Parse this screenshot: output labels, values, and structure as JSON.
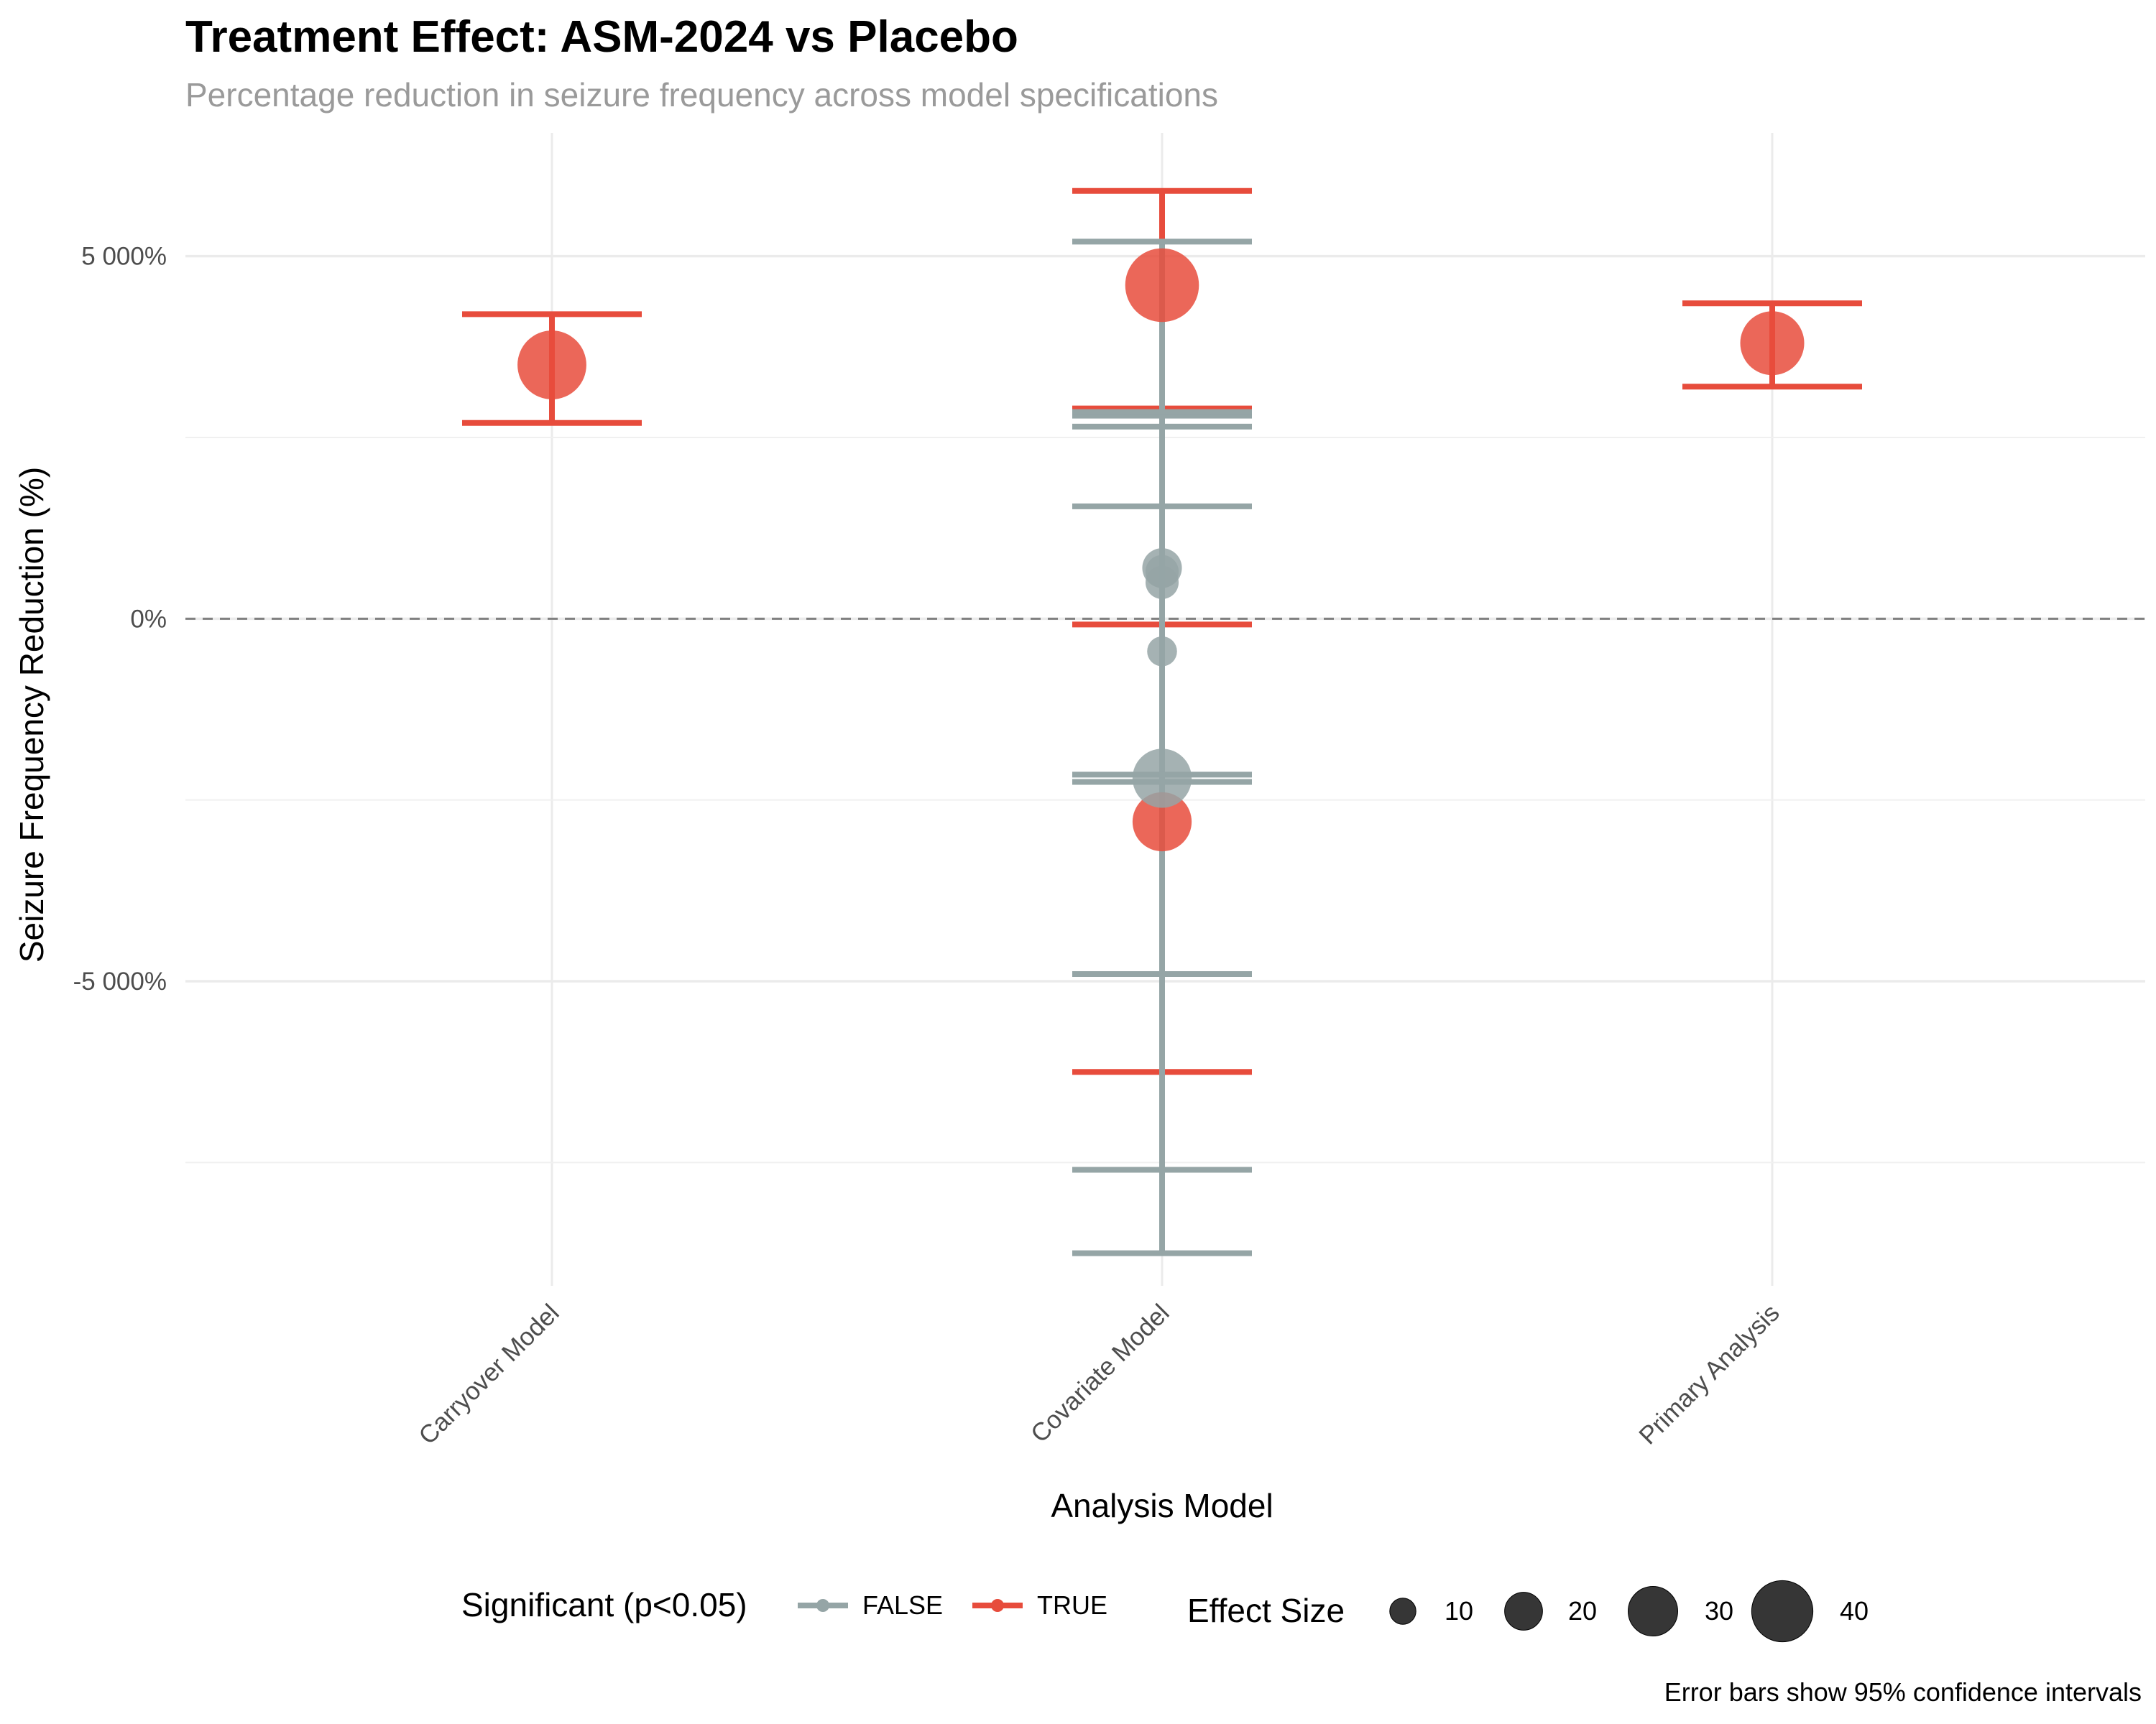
{
  "chart_data": {
    "type": "scatter",
    "title": "Treatment Effect: ASM-2024 vs Placebo",
    "subtitle": "Percentage reduction in seizure frequency across model specifications",
    "xlabel": "Analysis Model",
    "ylabel": "Seizure Frequency Reduction (%)",
    "caption": "Error bars show 95% confidence intervals",
    "categories": [
      "Carryover Model",
      "Covariate Model",
      "Primary Analysis"
    ],
    "ylim": [
      -9200,
      6700
    ],
    "yticks": [
      {
        "value": 5000,
        "label": "5 000%"
      },
      {
        "value": 0,
        "label": "0%"
      },
      {
        "value": -5000,
        "label": "-5 000%"
      }
    ],
    "grid": true,
    "reference_line": {
      "value": 0,
      "style": "dashed"
    },
    "colors": {
      "FALSE": "#95a5a6",
      "TRUE": "#e74c3c"
    },
    "points": [
      {
        "category": "Carryover Model",
        "estimate": 3500,
        "ci_low": 2700,
        "ci_high": 4200,
        "significant": "TRUE",
        "effect_size": 30
      },
      {
        "category": "Covariate Model",
        "estimate": 4600,
        "ci_low": 2900,
        "ci_high": 5900,
        "significant": "TRUE",
        "effect_size": 33
      },
      {
        "category": "Covariate Model",
        "estimate": -2800,
        "ci_low": -6250,
        "ci_high": -80,
        "significant": "TRUE",
        "effect_size": 24
      },
      {
        "category": "Covariate Model",
        "estimate": 700,
        "ci_low": -7600,
        "ci_high": 5200,
        "significant": "FALSE",
        "effect_size": 12
      },
      {
        "category": "Covariate Model",
        "estimate": 500,
        "ci_low": -4900,
        "ci_high": 2800,
        "significant": "FALSE",
        "effect_size": 8
      },
      {
        "category": "Covariate Model",
        "estimate": -450,
        "ci_low": -8750,
        "ci_high": 2650,
        "significant": "FALSE",
        "effect_size": 6
      },
      {
        "category": "Covariate Model",
        "estimate": -2200,
        "ci_low": -2250,
        "ci_high": 1550,
        "significant": "FALSE",
        "effect_size": 24
      },
      {
        "category": "Covariate Model",
        "estimate": 650,
        "ci_low": -2150,
        "ci_high": 2850,
        "significant": "FALSE",
        "effect_size": 8
      },
      {
        "category": "Primary Analysis",
        "estimate": 3800,
        "ci_low": 3200,
        "ci_high": 4350,
        "significant": "TRUE",
        "effect_size": 27
      }
    ],
    "legend": {
      "position": "bottom",
      "color_title": "Significant (p<0.05)",
      "color_entries": [
        "FALSE",
        "TRUE"
      ],
      "size_title": "Effect Size",
      "size_entries": [
        10,
        20,
        30,
        40
      ]
    }
  }
}
